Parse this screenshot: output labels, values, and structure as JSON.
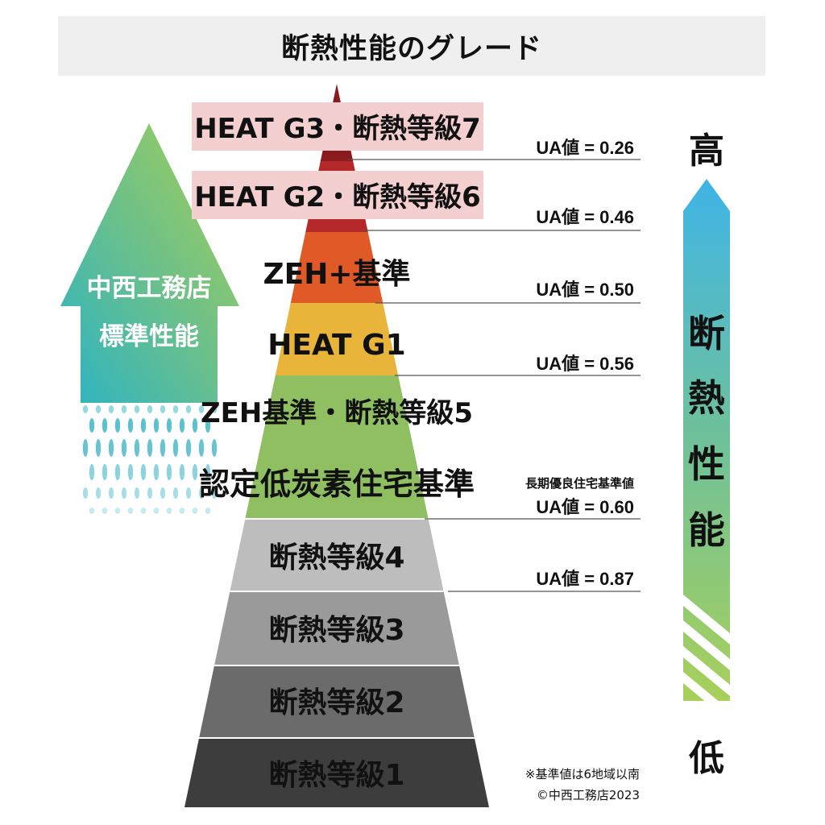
{
  "title": "断熱性能のグレード",
  "left_arrow": {
    "line1": "中西工務店",
    "line2": "標準性能"
  },
  "tiers": [
    {
      "label": "HEAT G3・断熱等級7",
      "color": "#8b1a1e",
      "highlight": true
    },
    {
      "label": "HEAT G2・断熱等級6",
      "color": "#b5282a",
      "highlight": true
    },
    {
      "label": "ZEH+基準",
      "color": "#e05a27",
      "highlight": false
    },
    {
      "label": "HEAT G1",
      "color": "#e8b43a",
      "highlight": false
    },
    {
      "label": "ZEH基準・断熱等級5",
      "color": "#8fbf61",
      "highlight": false
    },
    {
      "label": "認定低炭素住宅基準",
      "color": "#8fbf61",
      "highlight": false
    },
    {
      "label": "断熱等級4",
      "color": "#bdbdbd",
      "highlight": false
    },
    {
      "label": "断熱等級3",
      "color": "#9a9a9a",
      "highlight": false
    },
    {
      "label": "断熱等級2",
      "color": "#6b6b6b",
      "highlight": false
    },
    {
      "label": "断熱等級1",
      "color": "#3d3d3d",
      "highlight": false
    }
  ],
  "ua_values": [
    {
      "label": "UA値 = 0.26"
    },
    {
      "label": "UA値 = 0.46"
    },
    {
      "label": "UA値 = 0.50"
    },
    {
      "label": "UA値 = 0.56"
    },
    {
      "label": "UA値 = 0.60",
      "sub": "長期優良住宅基準値"
    },
    {
      "label": "UA値 = 0.87"
    }
  ],
  "right_scale": {
    "high": "高",
    "chars": [
      "断",
      "熱",
      "性",
      "能"
    ],
    "low": "低"
  },
  "notes": {
    "line1": "※基準値は6地域以南",
    "line2": "©中西工務店2023"
  }
}
